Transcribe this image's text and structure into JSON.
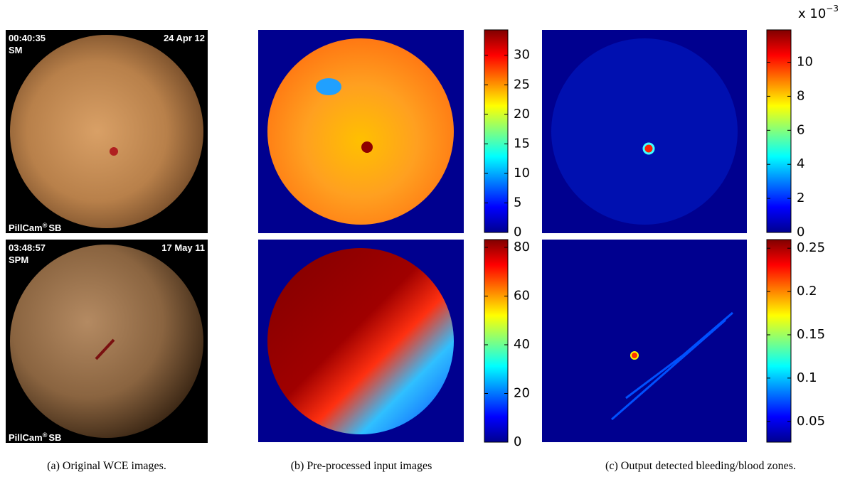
{
  "panel_a": {
    "images": [
      {
        "time": "00:40:35",
        "date": "24 Apr 12",
        "mode": "SM",
        "brand": "PillCam",
        "reg": "®",
        "model": "SB"
      },
      {
        "time": "03:48:57",
        "date": "17 May 11",
        "mode": "SPM",
        "brand": "PillCam",
        "reg": "®",
        "model": "SB"
      }
    ],
    "caption": "(a) Original WCE images."
  },
  "panel_b": {
    "caption": "(b) Pre-processed input images",
    "colorbars": [
      {
        "lim": [
          0,
          34.3
        ],
        "ticks": [
          0,
          5,
          10,
          15,
          20,
          25,
          30
        ]
      },
      {
        "lim": [
          0,
          83.2
        ],
        "ticks": [
          0,
          20,
          40,
          60,
          80
        ]
      }
    ]
  },
  "panel_c": {
    "caption": "(c) Output detected bleeding/blood zones.",
    "exponent": "x 10",
    "exponent_power": "−3",
    "colorbars": [
      {
        "lim": [
          0,
          11.9
        ],
        "ticks": [
          0,
          2,
          4,
          6,
          8,
          10
        ]
      },
      {
        "lim": [
          0.026,
          0.26
        ],
        "ticks": [
          0.05,
          0.1,
          0.15,
          0.2,
          0.25
        ]
      }
    ]
  }
}
